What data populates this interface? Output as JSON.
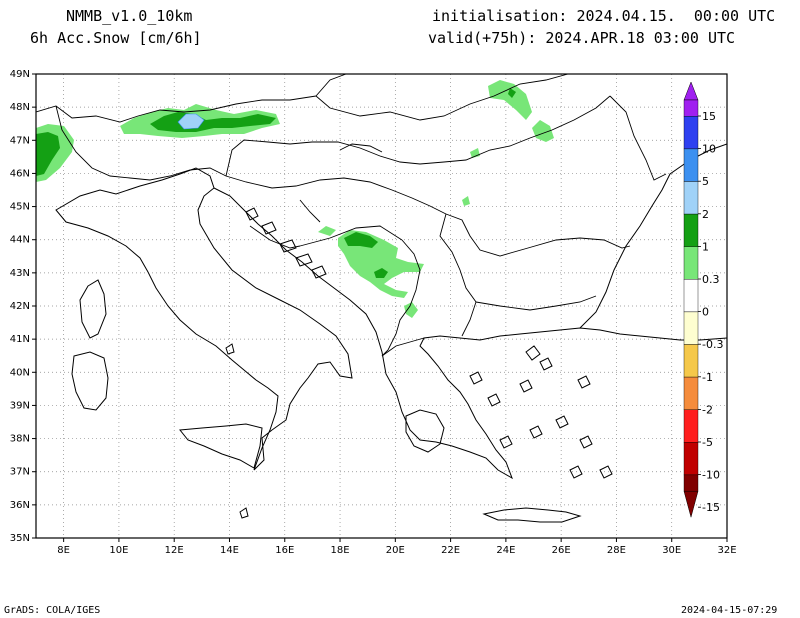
{
  "header": {
    "model": "NMMB_v1.0_10km",
    "field": "6h Acc.Snow [cm/6h]",
    "init": "initialisation: 2024.04.15.  00:00 UTC",
    "valid": "valid(+75h): 2024.APR.18 03:00 UTC"
  },
  "footer": {
    "credit": "GrADS: COLA/IGES",
    "timestamp": "2024-04-15-07:29"
  },
  "map": {
    "lon_range": [
      7,
      32
    ],
    "lat_range": [
      35,
      49
    ],
    "lon_ticks": [
      "8E",
      "10E",
      "12E",
      "14E",
      "16E",
      "18E",
      "20E",
      "22E",
      "24E",
      "26E",
      "28E",
      "30E",
      "32E"
    ],
    "lat_ticks": [
      "35N",
      "36N",
      "37N",
      "38N",
      "39N",
      "40N",
      "41N",
      "42N",
      "43N",
      "44N",
      "45N",
      "46N",
      "47N",
      "48N",
      "49N"
    ],
    "snow_areas": [
      {
        "name": "alps-west",
        "level": "0.3"
      },
      {
        "name": "alps-west-core",
        "level": "1"
      },
      {
        "name": "alps-east",
        "level": "0.3"
      },
      {
        "name": "alps-east-core",
        "level": "1"
      },
      {
        "name": "alps-east-peak",
        "level": "2"
      },
      {
        "name": "carpathians-north",
        "level": "0.3"
      },
      {
        "name": "balkans",
        "level": "0.3"
      },
      {
        "name": "balkans-core",
        "level": "1"
      }
    ]
  },
  "legend": {
    "levels": [
      {
        "label": "15",
        "color": "#a020f0"
      },
      {
        "label": "10",
        "color": "#2e40f0"
      },
      {
        "label": "5",
        "color": "#3c90f0"
      },
      {
        "label": "2",
        "color": "#a0d2f8"
      },
      {
        "label": "1",
        "color": "#14a014"
      },
      {
        "label": "0.3",
        "color": "#78e678"
      },
      {
        "label": "0",
        "color": "#ffffff"
      },
      {
        "label": "-0.3",
        "color": "#fefed0"
      },
      {
        "label": "-1",
        "color": "#f5c84a"
      },
      {
        "label": "-2",
        "color": "#f58c3c"
      },
      {
        "label": "-5",
        "color": "#ff1e1e"
      },
      {
        "label": "-10",
        "color": "#c00000"
      },
      {
        "label": "-15",
        "color": "#800000"
      }
    ]
  }
}
